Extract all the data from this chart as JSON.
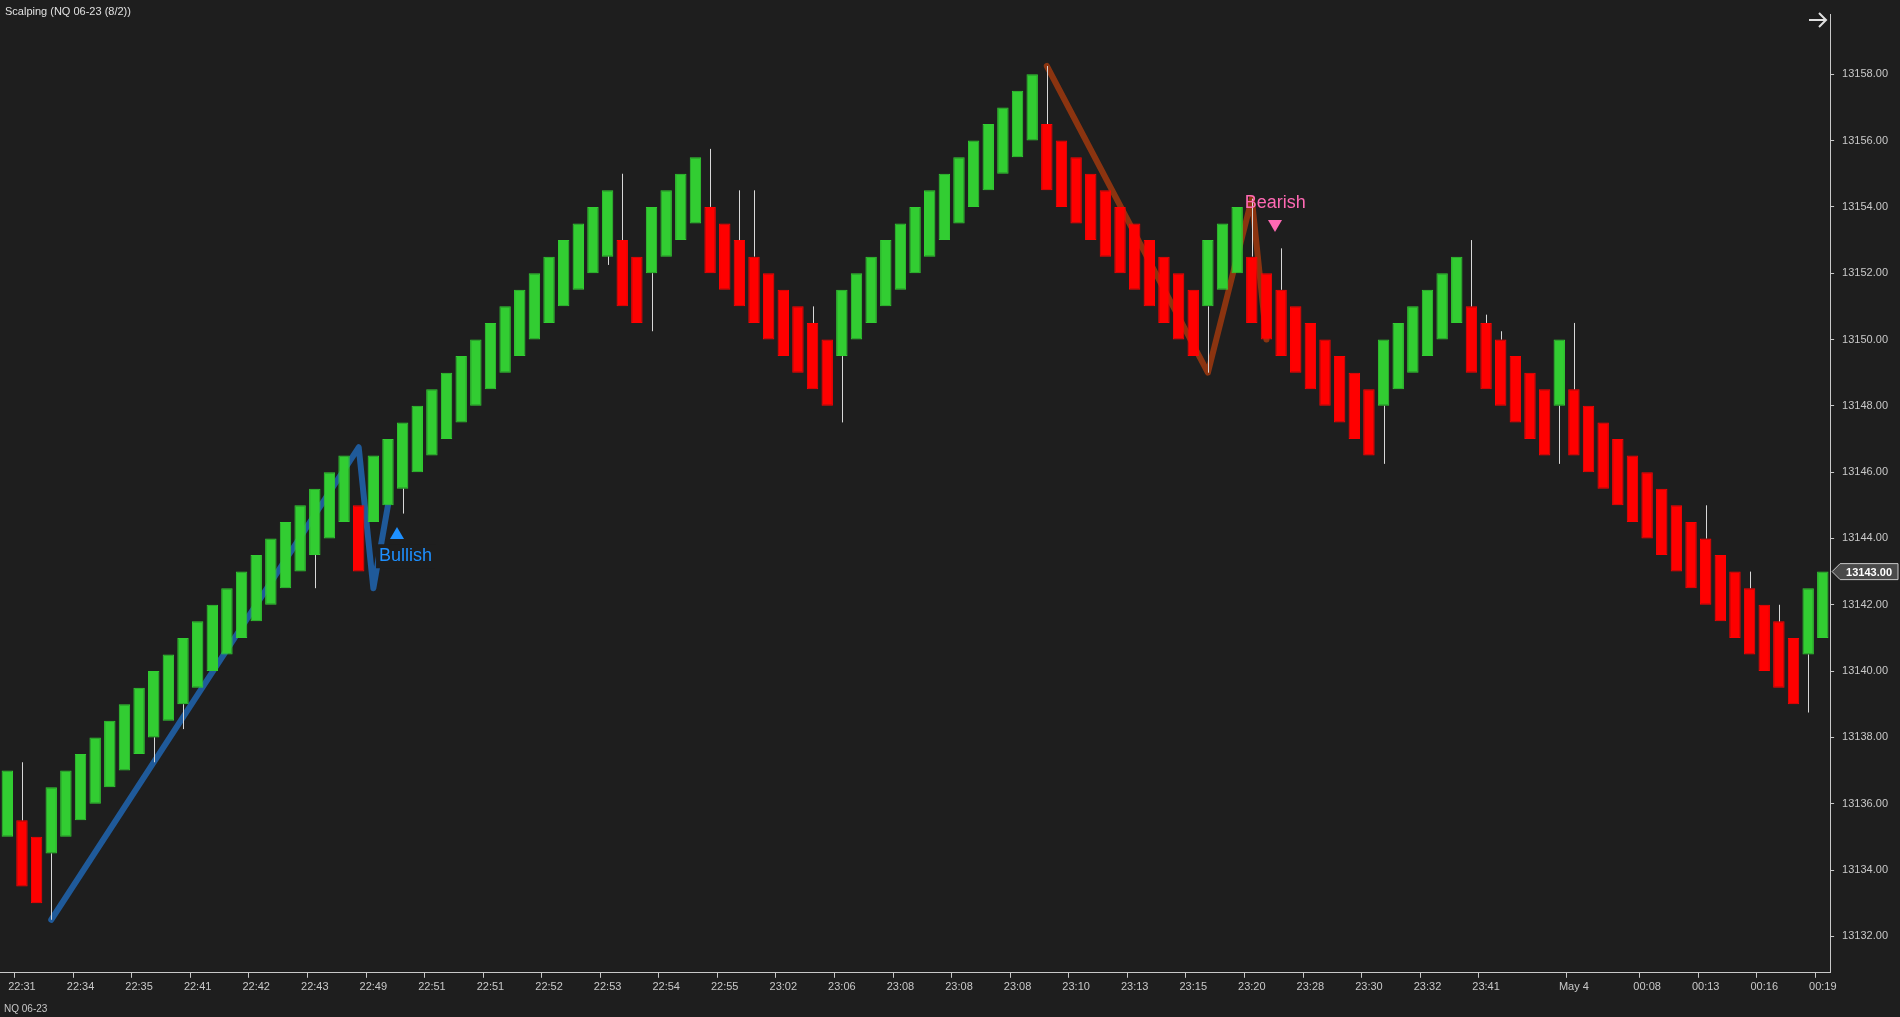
{
  "chart_data": {
    "type": "candlestick",
    "title": "Scalping (NQ 06-23 (8/2))",
    "categories": [
      null,
      "22:31",
      null,
      null,
      null,
      "22:34",
      null,
      null,
      null,
      "22:35",
      null,
      null,
      null,
      "22:41",
      null,
      null,
      null,
      "22:42",
      null,
      null,
      null,
      "22:43",
      null,
      null,
      null,
      "22:49",
      null,
      null,
      null,
      "22:51",
      null,
      null,
      null,
      "22:51",
      null,
      null,
      null,
      "22:52",
      null,
      null,
      null,
      "22:53",
      null,
      null,
      null,
      "22:54",
      null,
      null,
      null,
      "22:55",
      null,
      null,
      null,
      "23:02",
      null,
      null,
      null,
      "23:06",
      null,
      null,
      null,
      "23:08",
      null,
      null,
      null,
      "23:08",
      null,
      null,
      null,
      "23:08",
      null,
      null,
      null,
      "23:10",
      null,
      null,
      null,
      "23:13",
      null,
      null,
      null,
      "23:15",
      null,
      null,
      null,
      "23:20",
      null,
      null,
      null,
      "23:28",
      null,
      null,
      null,
      "23:30",
      null,
      null,
      null,
      "23:32",
      null,
      null,
      null,
      "23:41",
      null,
      null,
      null,
      null,
      null,
      "May 4",
      null,
      null,
      null,
      null,
      "00:08",
      null,
      null,
      null,
      "00:13",
      null,
      null,
      null,
      "00:16",
      null,
      null,
      null,
      "00:19"
    ],
    "ohlc": [
      [
        13135,
        13137,
        13135,
        13137
      ],
      [
        13135.5,
        13137.25,
        13133.5,
        13133.5
      ],
      [
        13135,
        13135,
        13133,
        13133
      ],
      [
        13134.5,
        13136.5,
        13132.5,
        13136.5
      ],
      [
        13135,
        13137,
        13135,
        13137
      ],
      [
        13135.5,
        13137.5,
        13135.5,
        13137.5
      ],
      [
        13136,
        13138,
        13136,
        13138
      ],
      [
        13136.5,
        13138.5,
        13136.5,
        13138.5
      ],
      [
        13137,
        13139,
        13137,
        13139
      ],
      [
        13137.5,
        13139.5,
        13137.5,
        13139.5
      ],
      [
        13138,
        13140,
        13137.25,
        13140
      ],
      [
        13138.5,
        13140.5,
        13138.5,
        13140.5
      ],
      [
        13139,
        13141,
        13138.25,
        13141
      ],
      [
        13139.5,
        13141.5,
        13139.5,
        13141.5
      ],
      [
        13140,
        13142,
        13140,
        13142
      ],
      [
        13140.5,
        13142.5,
        13140.5,
        13142.5
      ],
      [
        13141,
        13143,
        13141,
        13143
      ],
      [
        13141.5,
        13143.5,
        13141.5,
        13143.5
      ],
      [
        13142,
        13144,
        13142,
        13144
      ],
      [
        13142.5,
        13144.5,
        13142.5,
        13144.5
      ],
      [
        13143,
        13145,
        13143,
        13145
      ],
      [
        13143.5,
        13145.5,
        13142.5,
        13145.5
      ],
      [
        13144,
        13146,
        13144,
        13146
      ],
      [
        13144.5,
        13146.5,
        13144.5,
        13146.5
      ],
      [
        13145,
        13145,
        13143,
        13143
      ],
      [
        13144.5,
        13146.5,
        13144.5,
        13146.5
      ],
      [
        13145,
        13147,
        13145,
        13147
      ],
      [
        13145.5,
        13147.5,
        13144.75,
        13147.5
      ],
      [
        13146,
        13148,
        13146,
        13148
      ],
      [
        13146.5,
        13148.5,
        13146.5,
        13148.5
      ],
      [
        13147,
        13149,
        13147,
        13149
      ],
      [
        13147.5,
        13149.5,
        13147.5,
        13149.5
      ],
      [
        13148,
        13150,
        13148,
        13150
      ],
      [
        13148.5,
        13150.5,
        13148.5,
        13150.5
      ],
      [
        13149,
        13151,
        13149,
        13151
      ],
      [
        13149.5,
        13151.5,
        13149.5,
        13151.5
      ],
      [
        13150,
        13152,
        13150,
        13152
      ],
      [
        13150.5,
        13152.5,
        13150.5,
        13152.5
      ],
      [
        13151,
        13153,
        13151,
        13153
      ],
      [
        13151.5,
        13153.5,
        13151.5,
        13153.5
      ],
      [
        13152,
        13154,
        13152,
        13154
      ],
      [
        13152.5,
        13154.5,
        13152.25,
        13154.5
      ],
      [
        13153,
        13155,
        13151,
        13151
      ],
      [
        13152.5,
        13152.5,
        13150.5,
        13150.5
      ],
      [
        13152,
        13154,
        13150.25,
        13154
      ],
      [
        13152.5,
        13154.5,
        13152.5,
        13154.5
      ],
      [
        13153,
        13155,
        13153,
        13155
      ],
      [
        13153.5,
        13155.5,
        13153.5,
        13155.5
      ],
      [
        13154,
        13155.75,
        13152,
        13152
      ],
      [
        13153.5,
        13153.5,
        13151.5,
        13151.5
      ],
      [
        13153,
        13154.5,
        13151,
        13151
      ],
      [
        13152.5,
        13154.5,
        13150.5,
        13150.5
      ],
      [
        13152,
        13152,
        13150,
        13150
      ],
      [
        13151.5,
        13151.5,
        13149.5,
        13149.5
      ],
      [
        13151,
        13151,
        13149,
        13149
      ],
      [
        13150.5,
        13151,
        13148.5,
        13148.5
      ],
      [
        13150,
        13150,
        13148,
        13148
      ],
      [
        13149.5,
        13151.5,
        13147.5,
        13151.5
      ],
      [
        13150,
        13152,
        13150,
        13152
      ],
      [
        13150.5,
        13152.5,
        13150.5,
        13152.5
      ],
      [
        13151,
        13153,
        13151,
        13153
      ],
      [
        13151.5,
        13153.5,
        13151.5,
        13153.5
      ],
      [
        13152,
        13154,
        13152,
        13154
      ],
      [
        13152.5,
        13154.5,
        13152.5,
        13154.5
      ],
      [
        13153,
        13155,
        13153,
        13155
      ],
      [
        13153.5,
        13155.5,
        13153.5,
        13155.5
      ],
      [
        13154,
        13156,
        13154,
        13156
      ],
      [
        13154.5,
        13156.5,
        13154.5,
        13156.5
      ],
      [
        13155,
        13157,
        13155,
        13157
      ],
      [
        13155.5,
        13157.5,
        13155.5,
        13157.5
      ],
      [
        13156,
        13158,
        13156,
        13158
      ],
      [
        13156.5,
        13158.25,
        13154.5,
        13154.5
      ],
      [
        13156,
        13156,
        13154,
        13154
      ],
      [
        13155.5,
        13155.5,
        13153.5,
        13153.5
      ],
      [
        13155,
        13155,
        13153,
        13153
      ],
      [
        13154.5,
        13154.5,
        13152.5,
        13152.5
      ],
      [
        13154,
        13154,
        13152,
        13152
      ],
      [
        13153.5,
        13153.5,
        13151.5,
        13151.5
      ],
      [
        13153,
        13153,
        13151,
        13151
      ],
      [
        13152.5,
        13152.5,
        13150.5,
        13150.5
      ],
      [
        13152,
        13152,
        13150,
        13150
      ],
      [
        13151.5,
        13151.5,
        13149.5,
        13149.5
      ],
      [
        13151,
        13153,
        13149,
        13153
      ],
      [
        13151.5,
        13153.5,
        13151.5,
        13153.5
      ],
      [
        13152,
        13154,
        13152,
        13154
      ],
      [
        13152.5,
        13154.25,
        13150.5,
        13150.5
      ],
      [
        13152,
        13152,
        13150,
        13150
      ],
      [
        13151.5,
        13152.75,
        13149.5,
        13149.5
      ],
      [
        13151,
        13151,
        13149,
        13149
      ],
      [
        13150.5,
        13150.5,
        13148.5,
        13148.5
      ],
      [
        13150,
        13150,
        13148,
        13148
      ],
      [
        13149.5,
        13149.5,
        13147.5,
        13147.5
      ],
      [
        13149,
        13149,
        13147,
        13147
      ],
      [
        13148.5,
        13148.5,
        13146.5,
        13146.5
      ],
      [
        13148,
        13150,
        13146.25,
        13150
      ],
      [
        13148.5,
        13150.5,
        13148.5,
        13150.5
      ],
      [
        13149,
        13151,
        13149,
        13151
      ],
      [
        13149.5,
        13151.5,
        13149.5,
        13151.5
      ],
      [
        13150,
        13152,
        13150,
        13152
      ],
      [
        13150.5,
        13152.5,
        13150.5,
        13152.5
      ],
      [
        13151,
        13153,
        13149,
        13149
      ],
      [
        13150.5,
        13150.75,
        13148.5,
        13148.5
      ],
      [
        13150,
        13150.25,
        13148,
        13148
      ],
      [
        13149.5,
        13149.5,
        13147.5,
        13147.5
      ],
      [
        13149,
        13149,
        13147,
        13147
      ],
      [
        13148.5,
        13148.5,
        13146.5,
        13146.5
      ],
      [
        13148,
        13150,
        13146.25,
        13150
      ],
      [
        13148.5,
        13150.5,
        13146.5,
        13146.5
      ],
      [
        13148,
        13148,
        13146,
        13146
      ],
      [
        13147.5,
        13147.5,
        13145.5,
        13145.5
      ],
      [
        13147,
        13147,
        13145,
        13145
      ],
      [
        13146.5,
        13146.5,
        13144.5,
        13144.5
      ],
      [
        13146,
        13146,
        13144,
        13144
      ],
      [
        13145.5,
        13145.5,
        13143.5,
        13143.5
      ],
      [
        13145,
        13145,
        13143,
        13143
      ],
      [
        13144.5,
        13144.5,
        13142.5,
        13142.5
      ],
      [
        13144,
        13145,
        13142,
        13142
      ],
      [
        13143.5,
        13143.5,
        13141.5,
        13141.5
      ],
      [
        13143,
        13143,
        13141,
        13141
      ],
      [
        13142.5,
        13143,
        13140.5,
        13140.5
      ],
      [
        13142,
        13142,
        13140,
        13140
      ],
      [
        13141.5,
        13142,
        13139.5,
        13139.5
      ],
      [
        13141,
        13141,
        13139,
        13139
      ],
      [
        13140.5,
        13142.5,
        13138.75,
        13142.5
      ],
      [
        13141,
        13143,
        13141,
        13143
      ]
    ],
    "colors": [
      "#32cd32",
      "#ff0000",
      "#ff0000",
      "#32cd32",
      "#32cd32",
      "#32cd32",
      "#32cd32",
      "#32cd32",
      "#32cd32",
      "#32cd32",
      "#32cd32",
      "#32cd32",
      "#32cd32",
      "#32cd32",
      "#32cd32",
      "#32cd32",
      "#32cd32",
      "#32cd32",
      "#32cd32",
      "#32cd32",
      "#32cd32",
      "#32cd32",
      "#32cd32",
      "#32cd32",
      "#ff0000",
      "#32cd32",
      "#32cd32",
      "#32cd32",
      "#32cd32",
      "#32cd32",
      "#32cd32",
      "#32cd32",
      "#32cd32",
      "#32cd32",
      "#32cd32",
      "#32cd32",
      "#32cd32",
      "#32cd32",
      "#32cd32",
      "#32cd32",
      "#32cd32",
      "#32cd32",
      "#ff0000",
      "#ff0000",
      "#32cd32",
      "#32cd32",
      "#32cd32",
      "#32cd32",
      "#ff0000",
      "#ff0000",
      "#ff0000",
      "#ff0000",
      "#ff0000",
      "#ff0000",
      "#ff0000",
      "#ff0000",
      "#ff0000",
      "#32cd32",
      "#32cd32",
      "#32cd32",
      "#32cd32",
      "#32cd32",
      "#32cd32",
      "#32cd32",
      "#32cd32",
      "#32cd32",
      "#32cd32",
      "#32cd32",
      "#32cd32",
      "#32cd32",
      "#32cd32",
      "#ff0000",
      "#ff0000",
      "#ff0000",
      "#ff0000",
      "#ff0000",
      "#ff0000",
      "#ff0000",
      "#ff0000",
      "#ff0000",
      "#ff0000",
      "#ff0000",
      "#32cd32",
      "#32cd32",
      "#32cd32",
      "#ff0000",
      "#ff0000",
      "#ff0000",
      "#ff0000",
      "#ff0000",
      "#ff0000",
      "#ff0000",
      "#ff0000",
      "#ff0000",
      "#32cd32",
      "#32cd32",
      "#32cd32",
      "#32cd32",
      "#32cd32",
      "#32cd32",
      "#ff0000",
      "#ff0000",
      "#ff0000",
      "#ff0000",
      "#ff0000",
      "#ff0000",
      "#32cd32",
      "#ff0000",
      "#ff0000",
      "#ff0000",
      "#ff0000",
      "#ff0000",
      "#ff0000",
      "#ff0000",
      "#ff0000",
      "#ff0000",
      "#ff0000",
      "#ff0000",
      "#ff0000",
      "#ff0000",
      "#ff0000",
      "#ff0000",
      "#ff0000",
      "#32cd32",
      "#32cd32"
    ],
    "series": [
      {
        "type": "line",
        "color": "#1f5a9a",
        "values": [
          null,
          null,
          null,
          13132.5,
          null,
          null,
          null,
          null,
          null,
          null,
          null,
          null,
          null,
          null,
          null,
          null,
          null,
          null,
          null,
          null,
          null,
          null,
          null,
          null,
          13146.75,
          13142.5,
          13145,
          null,
          null,
          null,
          null,
          null,
          null,
          null,
          null,
          null,
          null,
          null,
          null,
          null,
          null,
          null,
          null,
          null,
          null,
          null,
          null,
          null,
          null,
          null,
          null,
          null,
          null,
          null,
          null,
          null,
          null,
          null,
          null,
          null,
          null,
          null,
          null,
          null,
          null,
          null,
          null,
          null,
          null,
          null,
          null,
          null,
          null,
          null,
          null,
          null,
          null,
          null,
          null,
          null,
          null,
          null,
          null,
          null,
          null,
          null,
          null,
          null,
          null,
          null,
          null,
          null,
          null,
          null,
          null,
          null,
          null,
          null,
          null,
          null,
          null,
          null,
          null,
          null,
          null,
          null,
          null,
          null,
          null,
          null,
          null,
          null,
          null,
          null,
          null,
          null,
          null,
          null,
          null,
          null,
          null,
          null,
          null,
          null,
          null
        ]
      },
      {
        "type": "line",
        "color": "#8b3410",
        "values": [
          null,
          null,
          null,
          null,
          null,
          null,
          null,
          null,
          null,
          null,
          null,
          null,
          null,
          null,
          null,
          null,
          null,
          null,
          null,
          null,
          null,
          null,
          null,
          null,
          null,
          null,
          null,
          null,
          null,
          null,
          null,
          null,
          null,
          null,
          null,
          null,
          null,
          null,
          null,
          null,
          null,
          null,
          null,
          null,
          null,
          null,
          null,
          null,
          null,
          null,
          null,
          null,
          null,
          null,
          null,
          null,
          null,
          null,
          null,
          null,
          null,
          null,
          null,
          null,
          null,
          null,
          null,
          null,
          null,
          null,
          null,
          13158.25,
          null,
          null,
          null,
          null,
          null,
          null,
          null,
          null,
          null,
          null,
          13149,
          null,
          null,
          13154.25,
          13150,
          null,
          null,
          null,
          null,
          null,
          null,
          null,
          null,
          null,
          null,
          null,
          null,
          null,
          null,
          null,
          null,
          null,
          null,
          null,
          null,
          null,
          null,
          null,
          null,
          null,
          null,
          null,
          null,
          null,
          null,
          null,
          null,
          null,
          null,
          null,
          null,
          null,
          null
        ]
      }
    ],
    "ylim": [
      13130.9,
      13159.8
    ],
    "yticks": [
      {
        "value": 13132,
        "label": "13132.00"
      },
      {
        "value": 13134,
        "label": "13134.00"
      },
      {
        "value": 13136,
        "label": "13136.00"
      },
      {
        "value": 13138,
        "label": "13138.00"
      },
      {
        "value": 13140,
        "label": "13140.00"
      },
      {
        "value": 13142,
        "label": "13142.00"
      },
      {
        "value": 13144,
        "label": "13144.00"
      },
      {
        "value": 13146,
        "label": "13146.00"
      },
      {
        "value": 13148,
        "label": "13148.00"
      },
      {
        "value": 13150,
        "label": "13150.00"
      },
      {
        "value": 13152,
        "label": "13152.00"
      },
      {
        "value": 13154,
        "label": "13154.00"
      },
      {
        "value": 13156,
        "label": "13156.00"
      },
      {
        "value": 13158,
        "label": "13158.00"
      }
    ],
    "annotations": [
      {
        "text": "Bullish",
        "x": "22:49",
        "y": 13142.5
      },
      {
        "text": "Bearish",
        "x": "23:20",
        "y": 13154.25
      },
      "13143.00",
      "NQ 06-23"
    ]
  }
}
